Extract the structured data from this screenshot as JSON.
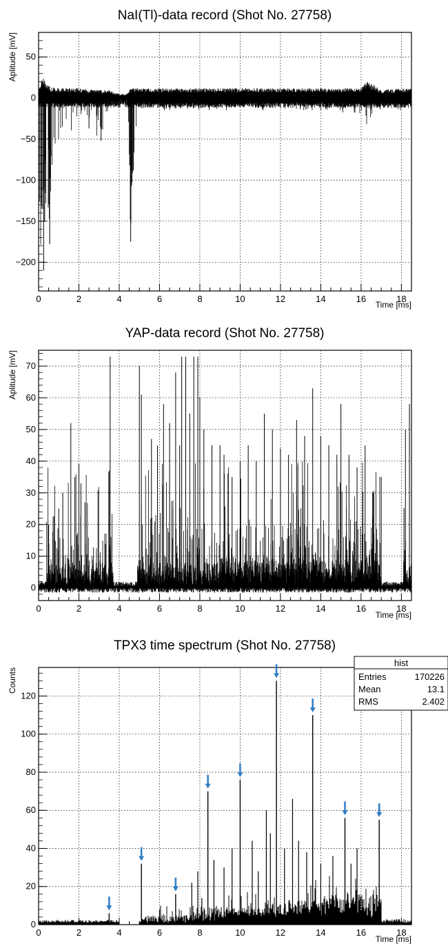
{
  "chart_data": [
    {
      "type": "line",
      "title": "NaI(Tl)-data record (Shot No. 27758)",
      "xlabel": "Time [ms]",
      "ylabel": "Aplitude [mV]",
      "xlim": [
        0,
        18.5
      ],
      "ylim": [
        -235,
        80
      ],
      "xticks": [
        0,
        2,
        4,
        6,
        8,
        10,
        12,
        14,
        16,
        18
      ],
      "yticks": [
        -200,
        -150,
        -100,
        -50,
        0,
        50
      ],
      "grid": true,
      "series": [
        {
          "color": "#000000",
          "description_points": {
            "x": [
              0.0,
              0.1,
              0.2,
              0.3,
              0.4,
              0.5,
              0.6,
              0.8,
              1.0,
              1.5,
              2.0,
              2.5,
              3.0,
              3.1,
              3.5,
              4.0,
              4.4,
              4.55,
              4.6,
              4.7,
              4.8,
              5.0,
              6.0,
              8.0,
              10.0,
              12.0,
              14.0,
              16.0,
              16.3,
              17.0,
              18.5
            ],
            "upper": [
              15,
              20,
              25,
              22,
              18,
              15,
              14,
              12,
              12,
              12,
              12,
              10,
              10,
              10,
              10,
              5,
              5,
              12,
              12,
              12,
              12,
              12,
              12,
              12,
              12,
              12,
              12,
              12,
              22,
              10,
              12
            ],
            "lower": [
              -60,
              -210,
              -200,
              -100,
              -170,
              -180,
              -120,
              -60,
              -50,
              -40,
              -40,
              -35,
              -55,
              -50,
              -10,
              -5,
              -5,
              -175,
              -150,
              -90,
              -50,
              -15,
              -15,
              -15,
              -15,
              -15,
              -15,
              -20,
              -35,
              -15,
              -15
            ]
          }
        }
      ]
    },
    {
      "type": "line",
      "title": "YAP-data record (Shot No. 27758)",
      "xlabel": "Time [ms]",
      "ylabel": "Aplitude [mV]",
      "xlim": [
        0,
        18.5
      ],
      "ylim": [
        -4,
        75
      ],
      "xticks": [
        0,
        2,
        4,
        6,
        8,
        10,
        12,
        14,
        16,
        18
      ],
      "yticks": [
        0,
        10,
        20,
        30,
        40,
        50,
        60,
        70
      ],
      "grid": true,
      "series": [
        {
          "color": "#000000",
          "peaks": {
            "x": [
              0.5,
              1.0,
              1.2,
              1.6,
              1.8,
              2.0,
              2.1,
              2.3,
              3.5,
              3.55,
              5.0,
              5.1,
              5.6,
              5.9,
              6.2,
              6.5,
              6.8,
              7.0,
              7.1,
              7.3,
              7.5,
              7.7,
              7.9,
              8.0,
              8.2,
              8.6,
              9.0,
              9.2,
              9.6,
              10.0,
              10.4,
              10.8,
              11.2,
              11.6,
              12.0,
              12.4,
              12.8,
              13.2,
              13.6,
              14.0,
              14.4,
              14.8,
              15.0,
              15.4,
              15.8,
              16.2,
              16.6,
              17.0,
              18.2,
              18.4
            ],
            "y": [
              20,
              25,
              30,
              52,
              35,
              39,
              33,
              27,
              37,
              73,
              70,
              61,
              47,
              45,
              58,
              52,
              68,
              45,
              73,
              73,
              55,
              73,
              73,
              60,
              50,
              45,
              45,
              42,
              35,
              40,
              45,
              40,
              55,
              50,
              44,
              42,
              53,
              48,
              63,
              48,
              45,
              42,
              58,
              42,
              38,
              45,
              30,
              35,
              50,
              58
            ]
          },
          "baseline_mean": 0.5
        }
      ]
    },
    {
      "type": "bar",
      "title": "TPX3 time spectrum (Shot No. 27758)",
      "xlabel": "Time [ms]",
      "ylabel": "Counts",
      "xlim": [
        0,
        18.5
      ],
      "ylim": [
        0,
        135
      ],
      "xticks": [
        0,
        2,
        4,
        6,
        8,
        10,
        12,
        14,
        16,
        18
      ],
      "yticks": [
        0,
        20,
        40,
        60,
        80,
        100,
        120
      ],
      "grid": true,
      "stats_box": {
        "title": "hist",
        "rows": [
          {
            "label": "Entries",
            "value": "170226"
          },
          {
            "label": "Mean",
            "value": "13.1"
          },
          {
            "label": "RMS",
            "value": "2.402"
          }
        ]
      },
      "peaks": {
        "x": [
          3.5,
          5.1,
          6.8,
          8.4,
          10.0,
          11.8,
          13.6,
          15.2,
          16.9
        ],
        "y": [
          6,
          32,
          16,
          70,
          76,
          128,
          110,
          56,
          55
        ]
      },
      "secondary_peaks": {
        "x": [
          6.0,
          7.6,
          7.9,
          8.1,
          8.7,
          9.2,
          9.6,
          10.6,
          10.9,
          11.3,
          11.5,
          12.2,
          12.6,
          12.9,
          13.3,
          14.0,
          14.6,
          15.5,
          15.8
        ],
        "y": [
          8,
          22,
          28,
          14,
          34,
          30,
          40,
          44,
          28,
          60,
          48,
          40,
          66,
          44,
          38,
          32,
          36,
          32,
          40
        ]
      },
      "arrow_color": "#2f7cc4"
    }
  ]
}
